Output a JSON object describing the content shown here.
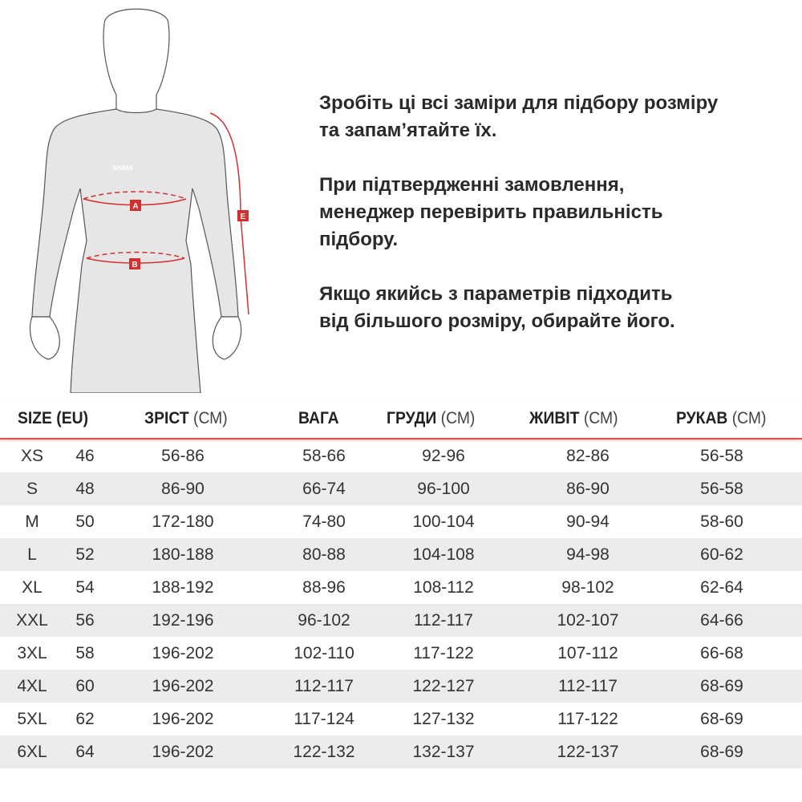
{
  "figure": {
    "labels": {
      "a": "A",
      "b": "B",
      "e": "E"
    },
    "logo_text": "SHIMA",
    "accent": "#d32f2f"
  },
  "intro": {
    "p1": "Зробіть ці всі заміри для підбору розміру\nта запам’ятайте їх.",
    "p2": "При підтвердженні замовлення,\nменеджер перевірить правильність\nпідбору.",
    "p3": "Якщо якийсь з параметрів підходить\nвід більшого розміру, обирайте його."
  },
  "table": {
    "headers": [
      {
        "label": "SIZE (EU)",
        "unit": ""
      },
      {
        "label": "ЗРІСТ",
        "unit": "(СМ)"
      },
      {
        "label": "ВАГА",
        "unit": ""
      },
      {
        "label": "ГРУДИ",
        "unit": "(СМ)"
      },
      {
        "label": "ЖИВІТ",
        "unit": "(СМ)"
      },
      {
        "label": "РУКАВ",
        "unit": "(СМ)"
      }
    ],
    "rows": [
      [
        "XS",
        "46",
        "56-86",
        "58-66",
        "92-96",
        "82-86",
        "56-58"
      ],
      [
        "S",
        "48",
        "86-90",
        "66-74",
        "96-100",
        "86-90",
        "56-58"
      ],
      [
        "M",
        "50",
        "172-180",
        "74-80",
        "100-104",
        "90-94",
        "58-60"
      ],
      [
        "L",
        "52",
        "180-188",
        "80-88",
        "104-108",
        "94-98",
        "60-62"
      ],
      [
        "XL",
        "54",
        "188-192",
        "88-96",
        "108-112",
        "98-102",
        "62-64"
      ],
      [
        "XXL",
        "56",
        "192-196",
        "96-102",
        "112-117",
        "102-107",
        "64-66"
      ],
      [
        "3XL",
        "58",
        "196-202",
        "102-110",
        "117-122",
        "107-112",
        "66-68"
      ],
      [
        "4XL",
        "60",
        "196-202",
        "112-117",
        "122-127",
        "112-117",
        "68-69"
      ],
      [
        "5XL",
        "62",
        "196-202",
        "117-124",
        "127-132",
        "117-122",
        "68-69"
      ],
      [
        "6XL",
        "64",
        "196-202",
        "122-132",
        "132-137",
        "122-137",
        "68-69"
      ]
    ]
  }
}
